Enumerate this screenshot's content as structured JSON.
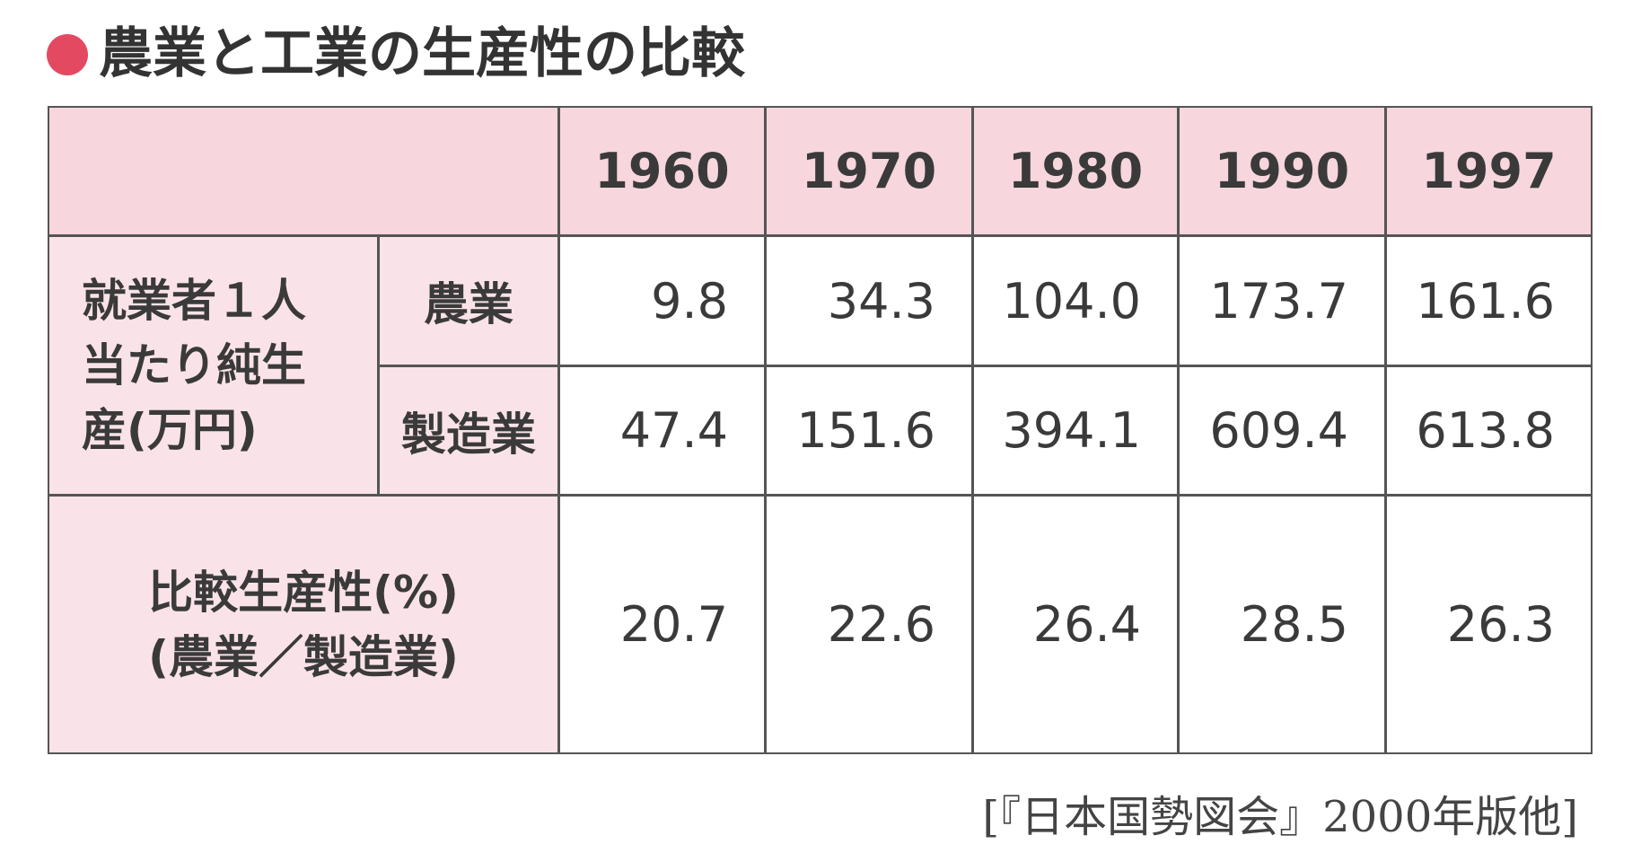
{
  "title": "農業と工業の生産性の比較",
  "table": {
    "header": [
      "1960",
      "1970",
      "1980",
      "1990",
      "1997"
    ],
    "group_label_lines": [
      "就業者１人",
      "当たり純生",
      "産(万円)"
    ],
    "rows": [
      {
        "label": "農業",
        "values": [
          "9.8",
          "34.3",
          "104.0",
          "173.7",
          "161.6"
        ]
      },
      {
        "label": "製造業",
        "values": [
          "47.4",
          "151.6",
          "394.1",
          "609.4",
          "613.8"
        ]
      }
    ],
    "ratio": {
      "label_lines": [
        "比較生産性(%)",
        "(農業／製造業)"
      ],
      "values": [
        "20.7",
        "22.6",
        "26.4",
        "28.5",
        "26.3"
      ]
    }
  },
  "source": "[『日本国勢図会』2000年版他]"
}
